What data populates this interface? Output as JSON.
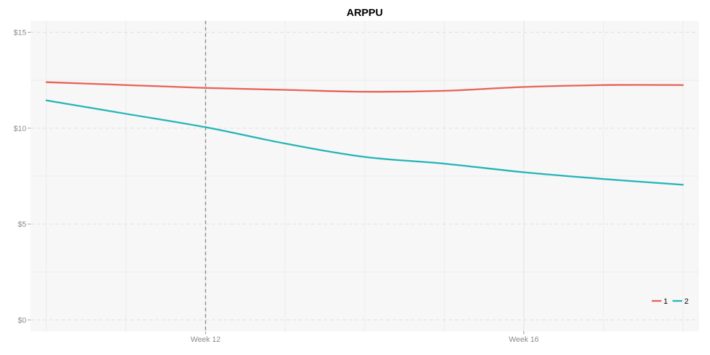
{
  "chart_data": {
    "type": "line",
    "title": "ARPPU",
    "xlabel": "",
    "ylabel": "",
    "x": [
      10,
      11,
      12,
      13,
      14,
      15,
      16,
      17,
      18
    ],
    "xlim": [
      9.8,
      18.2
    ],
    "x_ticks": [
      12,
      16
    ],
    "x_tick_labels": [
      "Week 12",
      "Week 16"
    ],
    "ylim": [
      -0.6,
      15.6
    ],
    "y_ticks": [
      0,
      5,
      10,
      15
    ],
    "y_tick_labels": [
      "$0",
      "$5",
      "$10",
      "$15"
    ],
    "vline": 12,
    "grid": true,
    "legend_position": "bottom-right",
    "series": [
      {
        "name": "1",
        "color": "#e8635a",
        "values": [
          12.4,
          12.25,
          12.1,
          12.0,
          11.9,
          11.95,
          12.15,
          12.25,
          12.25
        ]
      },
      {
        "name": "2",
        "color": "#26b5b8",
        "values": [
          11.45,
          10.75,
          10.05,
          9.2,
          8.5,
          8.15,
          7.7,
          7.35,
          7.05
        ]
      }
    ]
  }
}
